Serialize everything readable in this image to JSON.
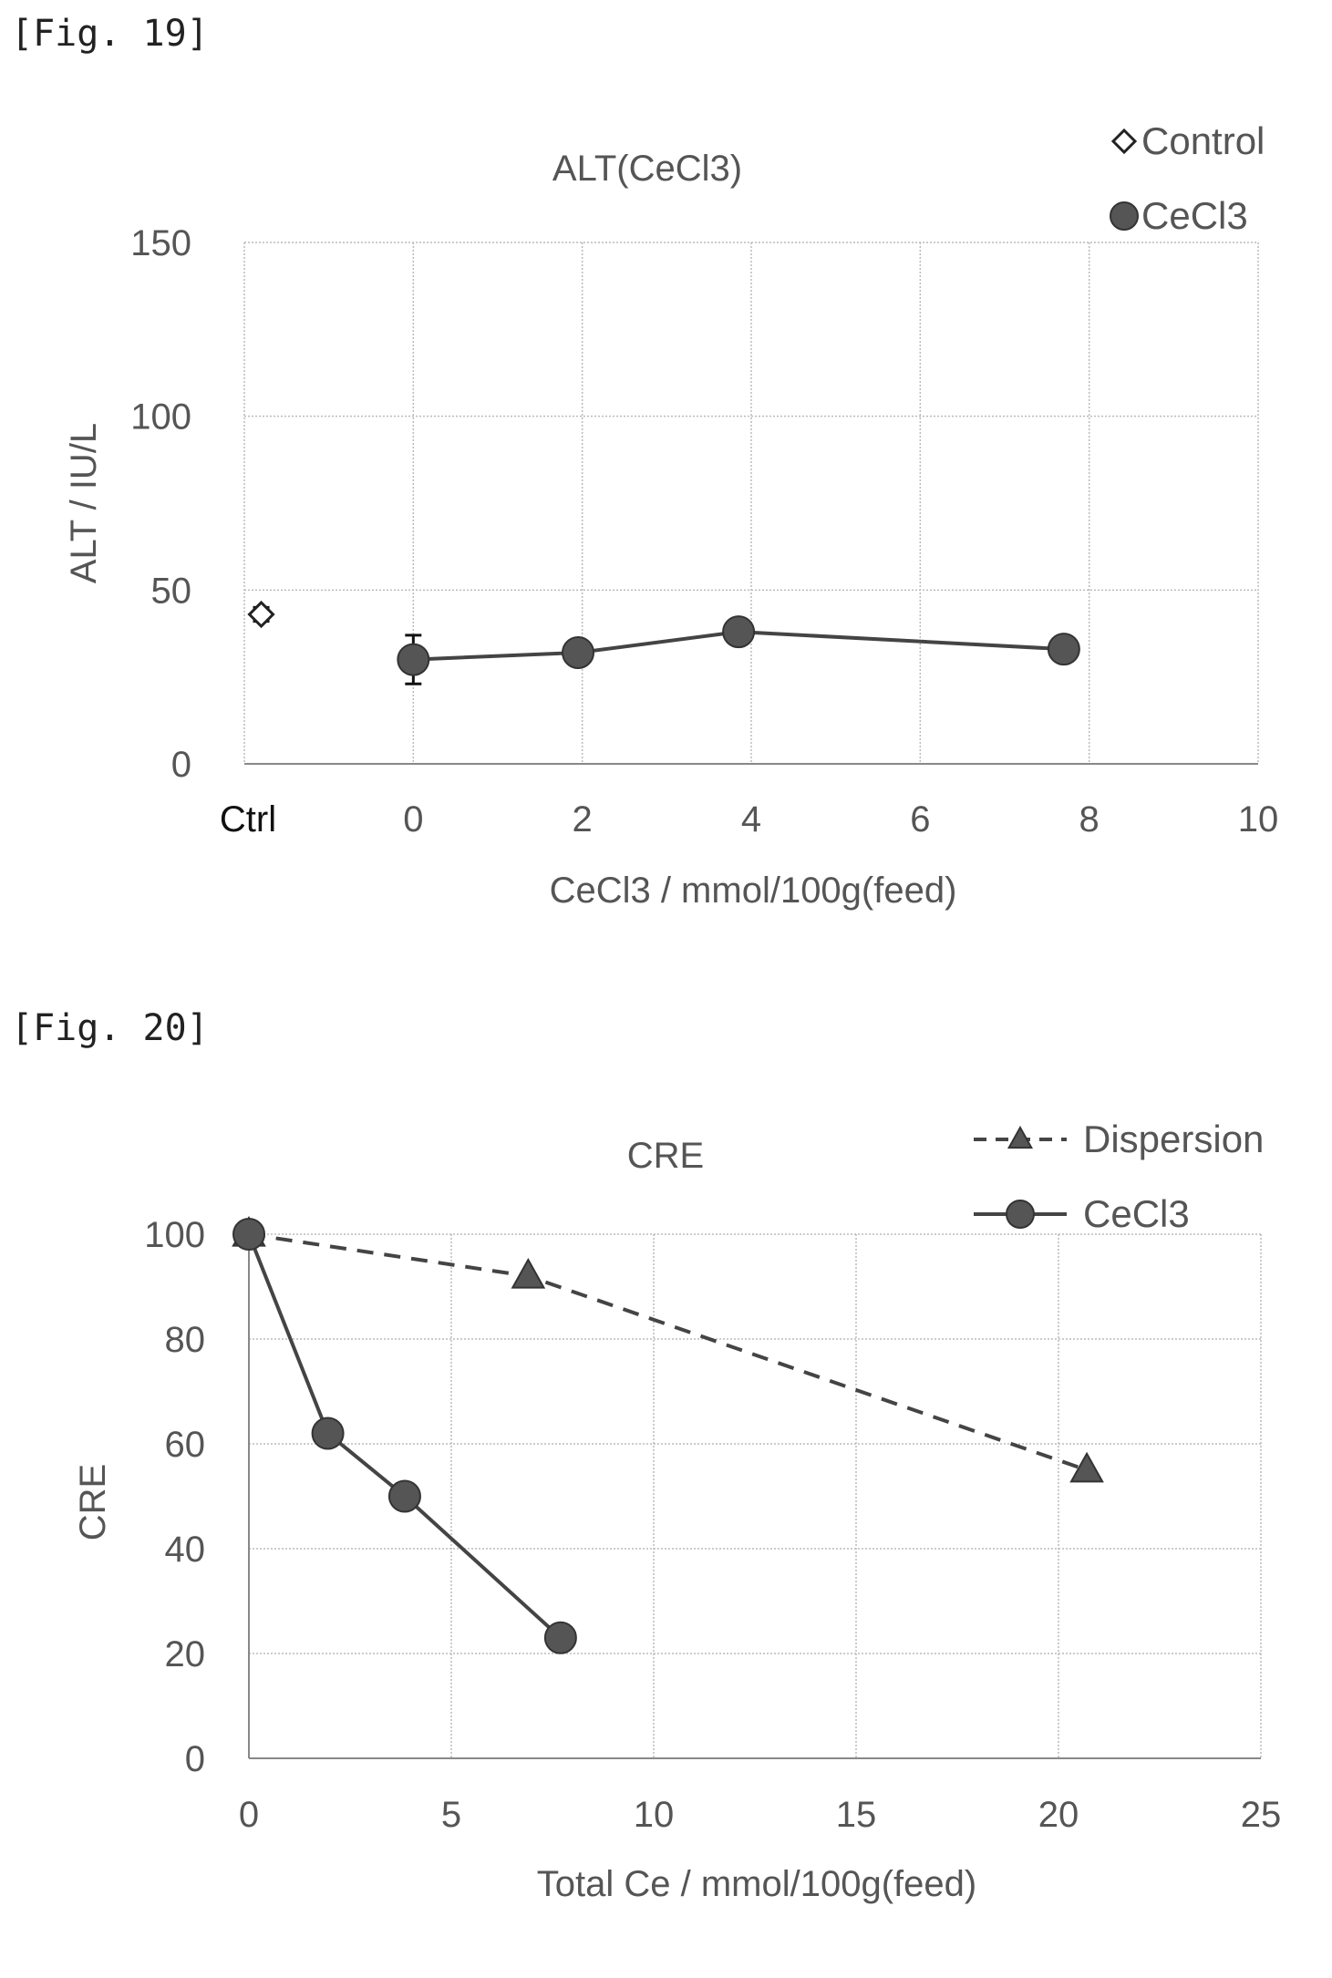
{
  "figures": [
    {
      "label": "[Fig. 19]"
    },
    {
      "label": "[Fig. 20]"
    }
  ],
  "chart_data": [
    {
      "type": "scatter",
      "title": "ALT(CeCl3)",
      "xlabel": "CeCl3 / mmol/100g(feed)",
      "ylabel": "ALT / IU/L",
      "xlim": [
        -2,
        10
      ],
      "ylim": [
        0,
        150
      ],
      "x_ticks": [
        {
          "value": -2,
          "label": "Ctrl"
        },
        {
          "value": 0,
          "label": "0"
        },
        {
          "value": 2,
          "label": "2"
        },
        {
          "value": 4,
          "label": "4"
        },
        {
          "value": 6,
          "label": "6"
        },
        {
          "value": 8,
          "label": "8"
        },
        {
          "value": 10,
          "label": "10"
        }
      ],
      "y_ticks": [
        "0",
        "50",
        "100",
        "150"
      ],
      "grid": true,
      "legend": "top-right",
      "series": [
        {
          "name": "Control",
          "marker": "diamond-open",
          "line": "none",
          "points": [
            {
              "x": -1.8,
              "y": 43,
              "err": 2
            }
          ]
        },
        {
          "name": "CeCl3",
          "marker": "circle-filled",
          "line": "solid",
          "points": [
            {
              "x": 0,
              "y": 30,
              "err": 7
            },
            {
              "x": 1.95,
              "y": 32
            },
            {
              "x": 3.85,
              "y": 38
            },
            {
              "x": 7.7,
              "y": 33
            }
          ]
        }
      ]
    },
    {
      "type": "line",
      "title": "CRE",
      "xlabel": "Total Ce / mmol/100g(feed)",
      "ylabel": "CRE",
      "xlim": [
        0,
        25
      ],
      "ylim": [
        0,
        100
      ],
      "x_ticks": [
        "0",
        "5",
        "10",
        "15",
        "20",
        "25"
      ],
      "y_ticks": [
        "0",
        "20",
        "40",
        "60",
        "80",
        "100"
      ],
      "grid": true,
      "legend": "top-right",
      "series": [
        {
          "name": "Dispersion",
          "marker": "triangle-filled",
          "line": "dashed",
          "points": [
            {
              "x": 0,
              "y": 100
            },
            {
              "x": 6.9,
              "y": 92
            },
            {
              "x": 20.7,
              "y": 55
            }
          ]
        },
        {
          "name": "CeCl3",
          "marker": "circle-filled",
          "line": "solid",
          "points": [
            {
              "x": 0,
              "y": 100
            },
            {
              "x": 1.95,
              "y": 62
            },
            {
              "x": 3.85,
              "y": 50
            },
            {
              "x": 7.7,
              "y": 23
            }
          ]
        }
      ]
    }
  ],
  "colors": {
    "marker": "#555555",
    "line": "#444444",
    "grid": "#bbbbbb",
    "text": "#555555",
    "axis": "#888888"
  }
}
